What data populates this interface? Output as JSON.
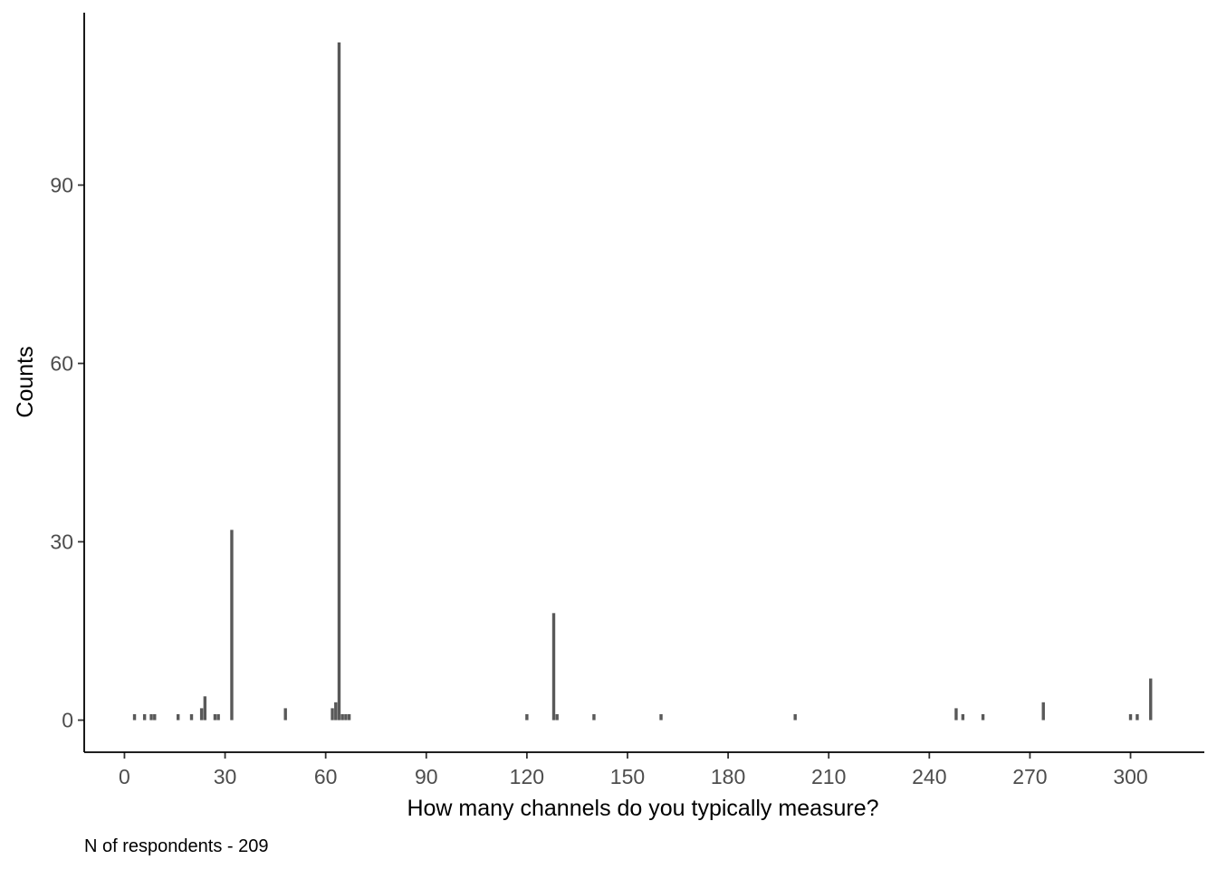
{
  "chart_data": {
    "type": "bar",
    "xlabel": "How many channels do you typically measure?",
    "ylabel": "Counts",
    "caption": "N of respondents - 209",
    "xlim": [
      -12,
      322
    ],
    "ylim": [
      -5.4,
      119
    ],
    "x_ticks": [
      0,
      30,
      60,
      90,
      120,
      150,
      180,
      210,
      240,
      270,
      300
    ],
    "y_ticks": [
      0,
      30,
      60,
      90
    ],
    "grid": false,
    "bar_color": "#595959",
    "points": [
      {
        "x": 3,
        "y": 1
      },
      {
        "x": 6,
        "y": 1
      },
      {
        "x": 8,
        "y": 1
      },
      {
        "x": 9,
        "y": 1
      },
      {
        "x": 16,
        "y": 1
      },
      {
        "x": 20,
        "y": 1
      },
      {
        "x": 23,
        "y": 2
      },
      {
        "x": 24,
        "y": 4
      },
      {
        "x": 27,
        "y": 1
      },
      {
        "x": 28,
        "y": 1
      },
      {
        "x": 32,
        "y": 32
      },
      {
        "x": 48,
        "y": 2
      },
      {
        "x": 62,
        "y": 2
      },
      {
        "x": 63,
        "y": 3
      },
      {
        "x": 64,
        "y": 114
      },
      {
        "x": 65,
        "y": 1
      },
      {
        "x": 66,
        "y": 1
      },
      {
        "x": 67,
        "y": 1
      },
      {
        "x": 120,
        "y": 1
      },
      {
        "x": 128,
        "y": 18
      },
      {
        "x": 129,
        "y": 1
      },
      {
        "x": 140,
        "y": 1
      },
      {
        "x": 160,
        "y": 1
      },
      {
        "x": 200,
        "y": 1
      },
      {
        "x": 248,
        "y": 2
      },
      {
        "x": 250,
        "y": 1
      },
      {
        "x": 256,
        "y": 1
      },
      {
        "x": 274,
        "y": 3
      },
      {
        "x": 300,
        "y": 1
      },
      {
        "x": 302,
        "y": 1
      },
      {
        "x": 306,
        "y": 7
      }
    ]
  }
}
